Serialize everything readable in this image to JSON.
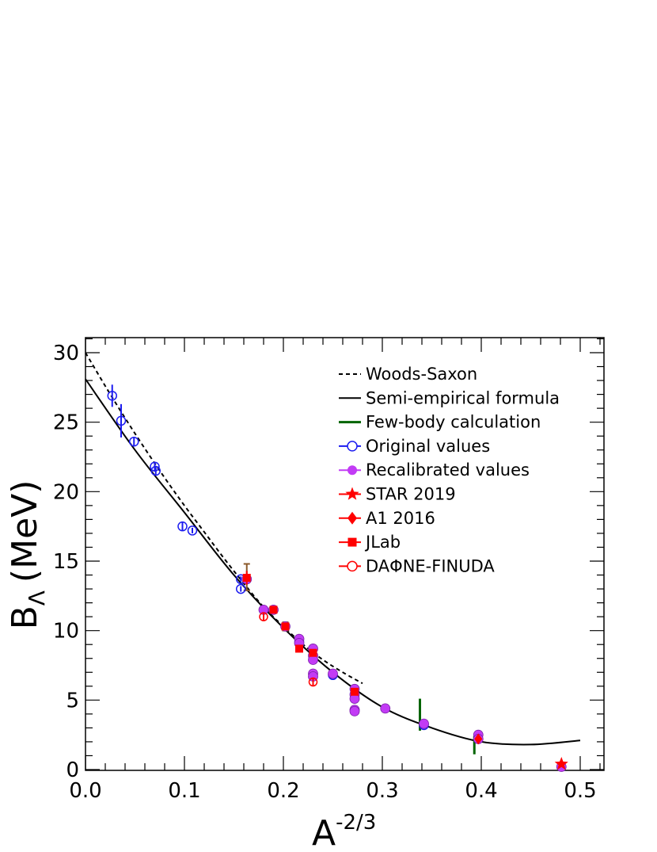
{
  "chart_data": {
    "type": "scatter",
    "title": "",
    "xlabel": {
      "base": "A",
      "superscript": "-2/3"
    },
    "ylabel": {
      "base": "B",
      "subscript": "Λ",
      "unit": "(MeV)"
    },
    "xlim": [
      0.0,
      0.52
    ],
    "ylim": [
      0,
      31
    ],
    "xticks": [
      "0.0",
      "0.1",
      "0.2",
      "0.3",
      "0.4",
      "0.5"
    ],
    "yticks": [
      "0",
      "5",
      "10",
      "15",
      "20",
      "25",
      "30"
    ],
    "grid": false,
    "legend_position": "top-right",
    "legend": [
      {
        "label": "Woods-Saxon",
        "key": "woods"
      },
      {
        "label": "Semi-empirical formula",
        "key": "semi"
      },
      {
        "label": "Few-body calculation",
        "key": "fewbody"
      },
      {
        "label": "Original values",
        "key": "original"
      },
      {
        "label": "Recalibrated values",
        "key": "recal"
      },
      {
        "label": "STAR 2019",
        "key": "star"
      },
      {
        "label": "A1 2016",
        "key": "a1"
      },
      {
        "label": "JLab",
        "key": "jlab"
      },
      {
        "label": "DAΦNE-FINUDA",
        "key": "finuda"
      }
    ],
    "colors": {
      "woods": "#000000",
      "semi": "#000000",
      "fewbody": "#006400",
      "original": "#1c1cf0",
      "recal": "#c23bf5",
      "red": "#ff0000",
      "systematic_bracket": "#8b5a2b"
    },
    "series": [
      {
        "name": "Woods-Saxon",
        "style": "dashed-line",
        "x": [
          0.0,
          0.02,
          0.04,
          0.06,
          0.08,
          0.1,
          0.12,
          0.14,
          0.16,
          0.18,
          0.2,
          0.22,
          0.24,
          0.26,
          0.28
        ],
        "y": [
          30.0,
          27.6,
          25.3,
          23.1,
          21.0,
          19.0,
          17.1,
          15.2,
          13.4,
          11.7,
          10.3,
          9.0,
          7.9,
          7.0,
          6.2
        ]
      },
      {
        "name": "Semi-empirical formula",
        "style": "solid-line",
        "x": [
          0.0,
          0.05,
          0.1,
          0.15,
          0.2,
          0.25,
          0.3,
          0.35,
          0.4,
          0.45,
          0.5
        ],
        "y": [
          28.1,
          23.0,
          18.5,
          14.0,
          10.2,
          7.0,
          4.5,
          3.0,
          2.0,
          1.8,
          2.1
        ]
      },
      {
        "name": "Few-body calculation",
        "style": "vertical-bar",
        "points": [
          {
            "x": 0.338,
            "y_low": 2.8,
            "y_high": 5.1
          },
          {
            "x": 0.393,
            "y_low": 1.1,
            "y_high": 2.4
          }
        ]
      },
      {
        "name": "Original values",
        "style": "open-circle",
        "points": [
          {
            "x": 0.027,
            "y": 26.9,
            "yerr": 0.8
          },
          {
            "x": 0.036,
            "y": 25.1,
            "yerr": 1.2
          },
          {
            "x": 0.049,
            "y": 23.6,
            "yerr": 0.3
          },
          {
            "x": 0.07,
            "y": 21.8,
            "yerr": 0.3
          },
          {
            "x": 0.071,
            "y": 21.5,
            "yerr": 0.3
          },
          {
            "x": 0.098,
            "y": 17.5,
            "yerr": 0.3
          },
          {
            "x": 0.108,
            "y": 17.2,
            "yerr": 0.2
          },
          {
            "x": 0.157,
            "y": 13.7,
            "yerr": 0.2
          },
          {
            "x": 0.157,
            "y": 13.0,
            "yerr": 0.2
          },
          {
            "x": 0.216,
            "y": 9.2,
            "yerr": 0.1
          },
          {
            "x": 0.25,
            "y": 6.8,
            "yerr": 0.1
          },
          {
            "x": 0.342,
            "y": 3.2,
            "yerr": 0.1
          }
        ]
      },
      {
        "name": "Recalibrated values",
        "style": "filled-circle",
        "points": [
          {
            "x": 0.163,
            "y": 13.7
          },
          {
            "x": 0.18,
            "y": 11.5
          },
          {
            "x": 0.19,
            "y": 11.5
          },
          {
            "x": 0.202,
            "y": 10.3
          },
          {
            "x": 0.216,
            "y": 9.4
          },
          {
            "x": 0.216,
            "y": 9.1
          },
          {
            "x": 0.23,
            "y": 8.7
          },
          {
            "x": 0.23,
            "y": 8.2
          },
          {
            "x": 0.23,
            "y": 7.9
          },
          {
            "x": 0.23,
            "y": 6.9
          },
          {
            "x": 0.23,
            "y": 6.7
          },
          {
            "x": 0.25,
            "y": 6.9
          },
          {
            "x": 0.272,
            "y": 5.8
          },
          {
            "x": 0.272,
            "y": 5.4
          },
          {
            "x": 0.272,
            "y": 5.1
          },
          {
            "x": 0.272,
            "y": 4.3
          },
          {
            "x": 0.272,
            "y": 4.2
          },
          {
            "x": 0.303,
            "y": 4.4
          },
          {
            "x": 0.342,
            "y": 3.3
          },
          {
            "x": 0.397,
            "y": 2.5
          },
          {
            "x": 0.397,
            "y": 2.2
          },
          {
            "x": 0.481,
            "y": 0.2
          }
        ]
      },
      {
        "name": "STAR 2019",
        "style": "star",
        "points": [
          {
            "x": 0.481,
            "y": 0.4,
            "yerr": 0.12
          }
        ]
      },
      {
        "name": "A1 2016",
        "style": "diamond",
        "points": [
          {
            "x": 0.397,
            "y": 2.2,
            "yerr": 0.1
          }
        ]
      },
      {
        "name": "JLab",
        "style": "filled-square",
        "points": [
          {
            "x": 0.163,
            "y": 13.8,
            "yerr": 0.5
          },
          {
            "x": 0.19,
            "y": 11.5,
            "yerr": 0.2
          },
          {
            "x": 0.202,
            "y": 10.3,
            "yerr": 0.2
          },
          {
            "x": 0.216,
            "y": 8.7,
            "yerr": 0.2
          },
          {
            "x": 0.23,
            "y": 8.4,
            "yerr": 0.2
          },
          {
            "x": 0.272,
            "y": 5.6,
            "yerr": 0.2
          }
        ]
      },
      {
        "name": "DAΦNE-FINUDA",
        "style": "open-circle",
        "points": [
          {
            "x": 0.18,
            "y": 11.0,
            "yerr": 0.3
          },
          {
            "x": 0.23,
            "y": 6.3,
            "yerr": 0.3
          }
        ]
      }
    ],
    "systematic_brackets": [
      {
        "x": 0.163,
        "y_low": 12.9,
        "y_high": 14.8
      },
      {
        "x": 0.202,
        "y_low": 10.0,
        "y_high": 10.6
      }
    ]
  }
}
